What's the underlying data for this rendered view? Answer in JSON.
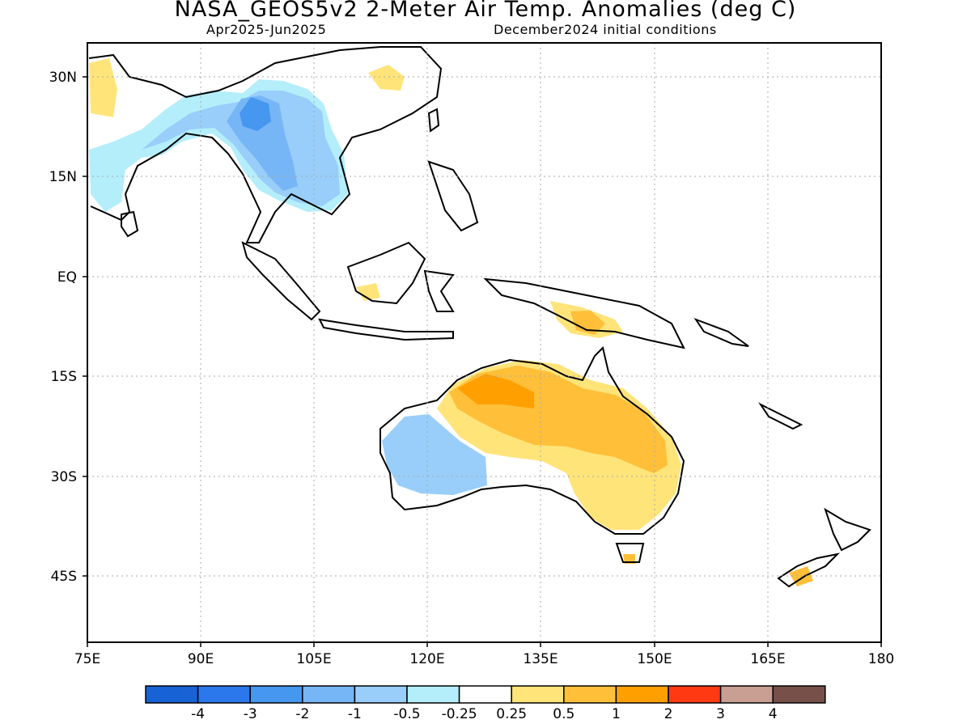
{
  "title": "NASA_GEOS5v2 2-Meter Air Temp. Anomalies (deg C)",
  "subtitle_period": "Apr2025-Jun2025",
  "subtitle_init": "December2024 initial conditions",
  "lat_labels": [
    "30N",
    "15N",
    "EQ",
    "15S",
    "30S",
    "45S"
  ],
  "lon_labels": [
    "75E",
    "90E",
    "105E",
    "120E",
    "135E",
    "150E",
    "165E",
    "180"
  ],
  "colorbar": {
    "colors": [
      "#1763d6",
      "#2b78ec",
      "#4597f0",
      "#77b6f6",
      "#98cef9",
      "#b4eefa",
      "#ffffff",
      "#ffe47a",
      "#ffbf39",
      "#ffa000",
      "#ff3a13",
      "#c99f93",
      "#77504a"
    ],
    "labels": [
      "-4",
      "-3",
      "-2",
      "-1",
      "-0.5",
      "-0.25",
      "0.25",
      "0.5",
      "1",
      "2",
      "3",
      "4"
    ]
  }
}
